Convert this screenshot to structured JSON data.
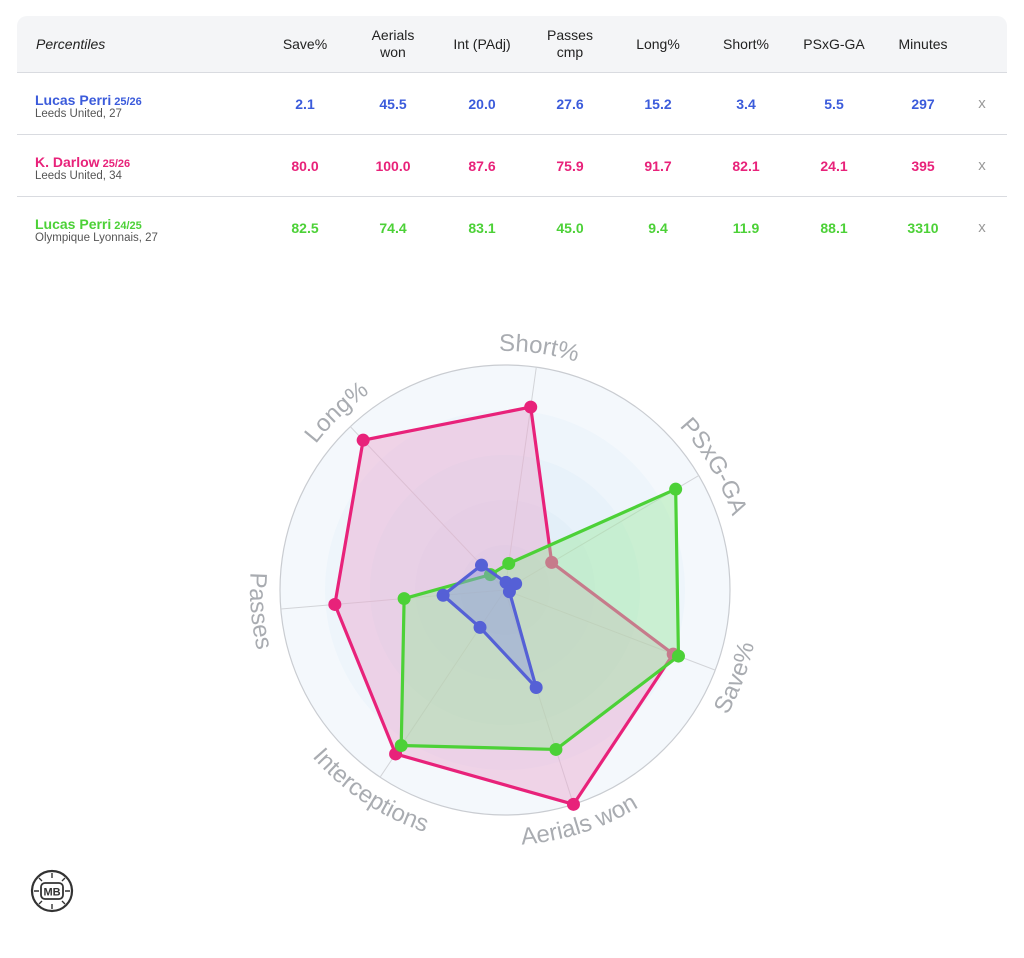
{
  "table": {
    "header_label": "Percentiles",
    "columns": [
      "Save%",
      "Aerials\nwon",
      "Int (PAdj)",
      "Passes\ncmp",
      "Long%",
      "Short%",
      "PSxG-GA",
      "Minutes"
    ],
    "remove_label": "x",
    "rows": [
      {
        "name": "Lucas Perri",
        "season": "25/26",
        "sub": "Leeds United, 27",
        "color": "#3b5bdb",
        "values": [
          "2.1",
          "45.5",
          "20.0",
          "27.6",
          "15.2",
          "3.4",
          "5.5",
          "297"
        ]
      },
      {
        "name": "K. Darlow",
        "season": "25/26",
        "sub": "Leeds United, 34",
        "color": "#e8227a",
        "values": [
          "80.0",
          "100.0",
          "87.6",
          "75.9",
          "91.7",
          "82.1",
          "24.1",
          "395"
        ]
      },
      {
        "name": "Lucas Perri",
        "season": "24/25",
        "sub": "Olympique Lyonnais, 27",
        "color": "#4cd137",
        "values": [
          "82.5",
          "74.4",
          "83.1",
          "45.0",
          "9.4",
          "11.9",
          "88.1",
          "3310"
        ]
      }
    ]
  },
  "chart_data": {
    "type": "radar",
    "axes": [
      "Short%",
      "PSxG-GA",
      "Save%",
      "Aerials won",
      "Interceptions",
      "Passes",
      "Long%"
    ],
    "rlim": [
      0,
      100
    ],
    "grid": true,
    "series": [
      {
        "name": "K. Darlow 25/26",
        "color": "#e8227a",
        "fill": "#e8a6cf",
        "values": [
          82.1,
          24.1,
          80.0,
          100.0,
          87.6,
          75.9,
          91.7
        ]
      },
      {
        "name": "Lucas Perri 24/25",
        "color": "#4cd137",
        "fill": "#9ee8a0",
        "values": [
          11.9,
          88.1,
          82.5,
          74.4,
          83.1,
          45.0,
          9.4
        ]
      },
      {
        "name": "Lucas Perri 25/26",
        "color": "#5560d6",
        "fill": "#8e97e0",
        "values": [
          3.4,
          5.5,
          2.1,
          45.5,
          20.0,
          27.6,
          15.2
        ]
      }
    ]
  },
  "logo_text": "MB"
}
